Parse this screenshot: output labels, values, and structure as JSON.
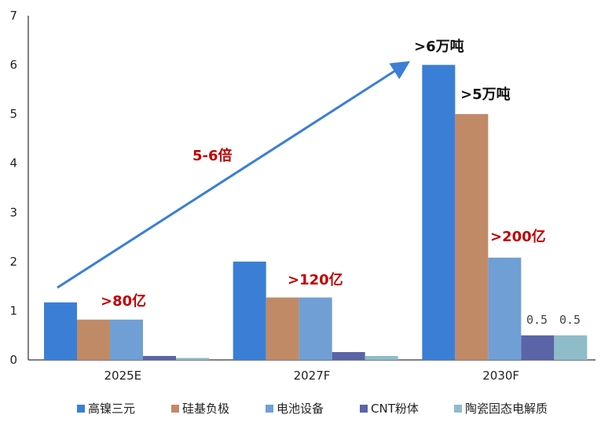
{
  "chart_data": {
    "type": "bar",
    "title": "",
    "xlabel": "",
    "ylabel": "",
    "ylim": [
      0,
      7
    ],
    "yticks": [
      "0",
      "1",
      "2",
      "3",
      "4",
      "5",
      "6",
      "7"
    ],
    "categories": [
      "2025E",
      "2027F",
      "2030F"
    ],
    "series": [
      {
        "name": "高镍三元",
        "color": "#3a7fd5",
        "values": [
          1.17,
          2.0,
          6.0
        ]
      },
      {
        "name": "硅基负极",
        "color": "#c08a67",
        "values": [
          0.82,
          1.27,
          5.0
        ]
      },
      {
        "name": "电池设备",
        "color": "#6f9fd4",
        "values": [
          0.82,
          1.27,
          2.08
        ]
      },
      {
        "name": "CNT粉体",
        "color": "#5a64a6",
        "values": [
          0.08,
          0.16,
          0.5
        ]
      },
      {
        "name": "陶瓷固态电解质",
        "color": "#8fbcc9",
        "values": [
          0.04,
          0.08,
          0.5
        ]
      }
    ],
    "grid": false,
    "legend": "bottom",
    "annotations": {
      "arrow_label": "5-6倍",
      "label_2025": ">80亿",
      "label_2027": ">120亿",
      "label_2030_equip": ">200亿",
      "label_2030_ni": ">6万吨",
      "label_2030_si": ">5万吨",
      "label_2030_cnt": "0.5",
      "label_2030_ceramic": "0.5"
    }
  }
}
